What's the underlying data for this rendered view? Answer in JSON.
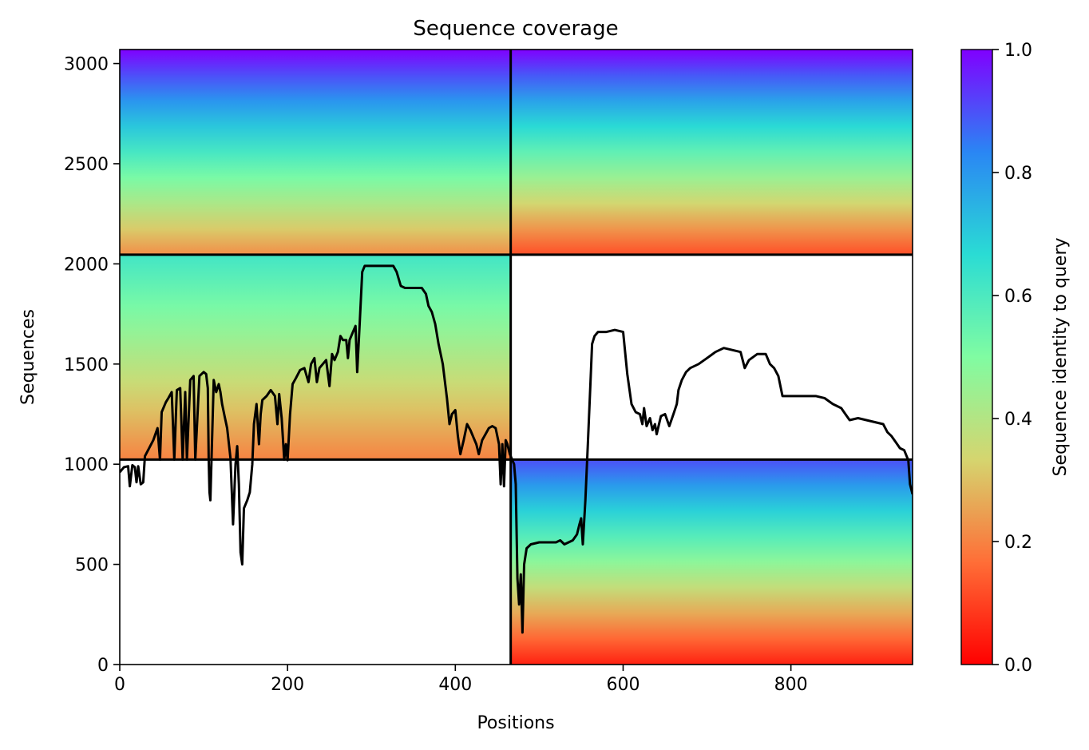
{
  "chart_data": {
    "type": "heatmap",
    "title": "Sequence coverage",
    "xlabel": "Positions",
    "ylabel": "Sequences",
    "xlim": [
      0,
      945
    ],
    "ylim": [
      0,
      3070
    ],
    "x_ticks": [
      0,
      200,
      400,
      600,
      800
    ],
    "y_ticks": [
      0,
      500,
      1000,
      1500,
      2000,
      2500,
      3000
    ],
    "colorbar": {
      "label": "Sequence identity to query",
      "range": [
        0,
        1
      ],
      "ticks": [
        0.0,
        0.2,
        0.4,
        0.6,
        0.8,
        1.0
      ],
      "colormap": "rainbow",
      "stops": [
        "#ff0000",
        "#ff6e37",
        "#d5d56f",
        "#80fca2",
        "#2adcd4",
        "#2a86f4",
        "#8000ff"
      ]
    },
    "block_dividers": {
      "x": [
        466
      ],
      "y": [
        1023,
        2046
      ]
    },
    "coverage_blocks": [
      {
        "x": [
          0,
          466
        ],
        "y": [
          2046,
          3070
        ],
        "identity_top": 1.0,
        "identity_bottom": 0.22
      },
      {
        "x": [
          0,
          466
        ],
        "y": [
          1023,
          2046
        ],
        "identity_top": 0.62,
        "identity_bottom": 0.2
      },
      {
        "x": [
          466,
          945
        ],
        "y": [
          2046,
          3070
        ],
        "identity_top": 1.0,
        "identity_bottom": 0.12
      },
      {
        "x": [
          466,
          945
        ],
        "y": [
          0,
          1023
        ],
        "identity_top": 0.9,
        "identity_bottom": 0.05
      }
    ],
    "coverage_line": {
      "color": "#000000",
      "points": [
        [
          0,
          960
        ],
        [
          5,
          985
        ],
        [
          10,
          990
        ],
        [
          12,
          890
        ],
        [
          15,
          995
        ],
        [
          18,
          985
        ],
        [
          20,
          910
        ],
        [
          22,
          990
        ],
        [
          25,
          900
        ],
        [
          28,
          910
        ],
        [
          30,
          1040
        ],
        [
          35,
          1080
        ],
        [
          40,
          1120
        ],
        [
          45,
          1180
        ],
        [
          48,
          1023
        ],
        [
          50,
          1260
        ],
        [
          55,
          1310
        ],
        [
          58,
          1330
        ],
        [
          62,
          1360
        ],
        [
          65,
          1023
        ],
        [
          68,
          1370
        ],
        [
          72,
          1380
        ],
        [
          75,
          1023
        ],
        [
          78,
          1360
        ],
        [
          80,
          1023
        ],
        [
          84,
          1420
        ],
        [
          88,
          1440
        ],
        [
          90,
          1023
        ],
        [
          95,
          1440
        ],
        [
          100,
          1460
        ],
        [
          103,
          1450
        ],
        [
          105,
          1380
        ],
        [
          106,
          1023
        ],
        [
          107,
          860
        ],
        [
          108,
          820
        ],
        [
          110,
          1120
        ],
        [
          112,
          1420
        ],
        [
          115,
          1360
        ],
        [
          118,
          1400
        ],
        [
          120,
          1360
        ],
        [
          122,
          1300
        ],
        [
          125,
          1240
        ],
        [
          128,
          1180
        ],
        [
          132,
          1030
        ],
        [
          135,
          700
        ],
        [
          138,
          1000
        ],
        [
          140,
          1090
        ],
        [
          142,
          900
        ],
        [
          144,
          560
        ],
        [
          146,
          500
        ],
        [
          148,
          780
        ],
        [
          152,
          820
        ],
        [
          155,
          860
        ],
        [
          158,
          1000
        ],
        [
          160,
          1200
        ],
        [
          163,
          1300
        ],
        [
          166,
          1100
        ],
        [
          168,
          1250
        ],
        [
          170,
          1320
        ],
        [
          175,
          1340
        ],
        [
          180,
          1370
        ],
        [
          185,
          1340
        ],
        [
          188,
          1200
        ],
        [
          190,
          1350
        ],
        [
          193,
          1230
        ],
        [
          196,
          1023
        ],
        [
          198,
          1100
        ],
        [
          200,
          1020
        ],
        [
          203,
          1250
        ],
        [
          206,
          1400
        ],
        [
          210,
          1430
        ],
        [
          215,
          1470
        ],
        [
          220,
          1480
        ],
        [
          225,
          1410
        ],
        [
          228,
          1500
        ],
        [
          232,
          1530
        ],
        [
          235,
          1410
        ],
        [
          238,
          1480
        ],
        [
          242,
          1500
        ],
        [
          246,
          1520
        ],
        [
          250,
          1390
        ],
        [
          253,
          1550
        ],
        [
          256,
          1520
        ],
        [
          260,
          1560
        ],
        [
          263,
          1640
        ],
        [
          266,
          1620
        ],
        [
          270,
          1620
        ],
        [
          272,
          1530
        ],
        [
          274,
          1620
        ],
        [
          278,
          1660
        ],
        [
          281,
          1690
        ],
        [
          283,
          1460
        ],
        [
          286,
          1700
        ],
        [
          289,
          1960
        ],
        [
          292,
          1990
        ],
        [
          310,
          1990
        ],
        [
          318,
          1990
        ],
        [
          326,
          1990
        ],
        [
          330,
          1960
        ],
        [
          335,
          1890
        ],
        [
          340,
          1880
        ],
        [
          350,
          1880
        ],
        [
          360,
          1880
        ],
        [
          365,
          1850
        ],
        [
          368,
          1790
        ],
        [
          372,
          1760
        ],
        [
          376,
          1700
        ],
        [
          380,
          1600
        ],
        [
          385,
          1500
        ],
        [
          390,
          1330
        ],
        [
          393,
          1200
        ],
        [
          396,
          1250
        ],
        [
          400,
          1270
        ],
        [
          403,
          1140
        ],
        [
          406,
          1050
        ],
        [
          410,
          1120
        ],
        [
          414,
          1200
        ],
        [
          418,
          1170
        ],
        [
          422,
          1130
        ],
        [
          425,
          1100
        ],
        [
          428,
          1050
        ],
        [
          432,
          1120
        ],
        [
          436,
          1150
        ],
        [
          440,
          1180
        ],
        [
          444,
          1190
        ],
        [
          448,
          1180
        ],
        [
          452,
          1100
        ],
        [
          454,
          900
        ],
        [
          456,
          1100
        ],
        [
          458,
          890
        ],
        [
          460,
          1120
        ],
        [
          462,
          1100
        ],
        [
          465,
          1050
        ],
        [
          470,
          1000
        ],
        [
          472,
          900
        ],
        [
          474,
          430
        ],
        [
          476,
          300
        ],
        [
          478,
          450
        ],
        [
          480,
          160
        ],
        [
          482,
          500
        ],
        [
          485,
          580
        ],
        [
          490,
          600
        ],
        [
          500,
          610
        ],
        [
          510,
          610
        ],
        [
          520,
          610
        ],
        [
          525,
          620
        ],
        [
          530,
          600
        ],
        [
          535,
          610
        ],
        [
          540,
          620
        ],
        [
          545,
          650
        ],
        [
          548,
          700
        ],
        [
          550,
          730
        ],
        [
          552,
          600
        ],
        [
          555,
          820
        ],
        [
          558,
          1100
        ],
        [
          561,
          1400
        ],
        [
          563,
          1600
        ],
        [
          566,
          1640
        ],
        [
          570,
          1660
        ],
        [
          580,
          1660
        ],
        [
          590,
          1670
        ],
        [
          600,
          1660
        ],
        [
          605,
          1450
        ],
        [
          610,
          1300
        ],
        [
          615,
          1260
        ],
        [
          620,
          1250
        ],
        [
          623,
          1200
        ],
        [
          625,
          1280
        ],
        [
          628,
          1190
        ],
        [
          632,
          1230
        ],
        [
          635,
          1170
        ],
        [
          638,
          1200
        ],
        [
          640,
          1150
        ],
        [
          645,
          1240
        ],
        [
          650,
          1250
        ],
        [
          655,
          1190
        ],
        [
          660,
          1250
        ],
        [
          664,
          1300
        ],
        [
          666,
          1370
        ],
        [
          670,
          1420
        ],
        [
          675,
          1460
        ],
        [
          680,
          1480
        ],
        [
          690,
          1500
        ],
        [
          700,
          1530
        ],
        [
          710,
          1560
        ],
        [
          720,
          1580
        ],
        [
          730,
          1570
        ],
        [
          740,
          1560
        ],
        [
          745,
          1480
        ],
        [
          750,
          1520
        ],
        [
          760,
          1550
        ],
        [
          770,
          1550
        ],
        [
          775,
          1500
        ],
        [
          780,
          1480
        ],
        [
          785,
          1440
        ],
        [
          790,
          1340
        ],
        [
          800,
          1340
        ],
        [
          810,
          1340
        ],
        [
          820,
          1340
        ],
        [
          830,
          1340
        ],
        [
          840,
          1330
        ],
        [
          850,
          1300
        ],
        [
          855,
          1290
        ],
        [
          860,
          1280
        ],
        [
          865,
          1250
        ],
        [
          870,
          1220
        ],
        [
          880,
          1230
        ],
        [
          890,
          1220
        ],
        [
          900,
          1210
        ],
        [
          910,
          1200
        ],
        [
          915,
          1160
        ],
        [
          920,
          1140
        ],
        [
          925,
          1110
        ],
        [
          930,
          1080
        ],
        [
          935,
          1070
        ],
        [
          938,
          1040
        ],
        [
          940,
          1020
        ],
        [
          942,
          900
        ],
        [
          945,
          850
        ]
      ]
    }
  }
}
